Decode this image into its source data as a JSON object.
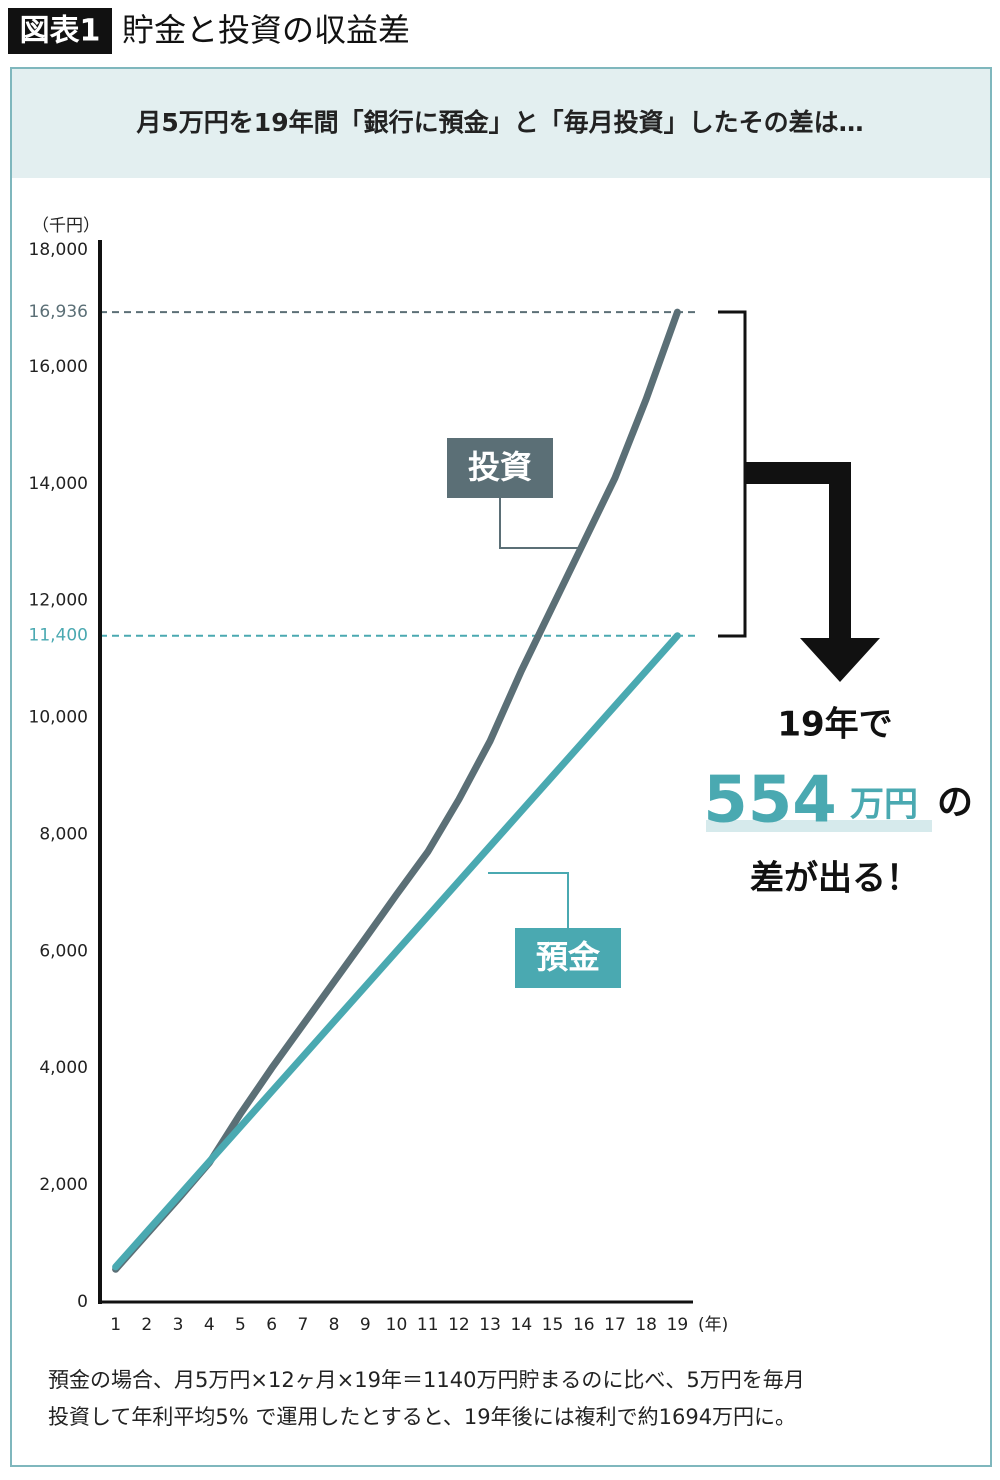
{
  "header": {
    "badge": "図表1",
    "title": "貯金と投資の収益差"
  },
  "chart_data": {
    "type": "line",
    "subtitle": "月5万円を19年間「銀行に預金」と「毎月投資」したその差は…",
    "y_unit": "（千円）",
    "x_unit": "(年)",
    "x": [
      1,
      2,
      3,
      4,
      5,
      6,
      7,
      8,
      9,
      10,
      11,
      12,
      13,
      14,
      15,
      16,
      17,
      18,
      19
    ],
    "series": [
      {
        "name": "投資",
        "color": "#5b6f76",
        "values": [
          560,
          1160,
          1760,
          2380,
          3220,
          4000,
          4740,
          5480,
          6220,
          6970,
          7700,
          8600,
          9600,
          10800,
          11900,
          13000,
          14100,
          15450,
          16936
        ]
      },
      {
        "name": "預金",
        "color": "#4aa9b1",
        "values": [
          600,
          1200,
          1800,
          2400,
          3000,
          3600,
          4200,
          4800,
          5400,
          6000,
          6600,
          7200,
          7800,
          8400,
          9000,
          9600,
          10200,
          10800,
          11400
        ]
      }
    ],
    "xlim": [
      0.5,
      19.5
    ],
    "ylim": [
      0,
      18000
    ],
    "xticks": [
      1,
      2,
      3,
      4,
      5,
      6,
      7,
      8,
      9,
      10,
      11,
      12,
      13,
      14,
      15,
      16,
      17,
      18,
      19
    ],
    "yticks": [
      0,
      {
        "value": 2000,
        "label": "2,000"
      },
      {
        "value": 4000,
        "label": "4,000"
      },
      {
        "value": 6000,
        "label": "6,000"
      },
      {
        "value": 8000,
        "label": "8,000"
      },
      {
        "value": 10000,
        "label": "10,000"
      },
      {
        "value": 12000,
        "label": "12,000"
      },
      {
        "value": 14000,
        "label": "14,000"
      },
      {
        "value": 16000,
        "label": "16,000"
      },
      {
        "value": 18000,
        "label": "18,000"
      }
    ],
    "reference_lines": [
      {
        "value": 16936,
        "label": "16,936",
        "color": "#5b6f76"
      },
      {
        "value": 11400,
        "label": "11,400",
        "color": "#4aa9b1"
      }
    ],
    "callout": {
      "line1": "19年で",
      "amount": "554",
      "unit": "万円",
      "particle": "の",
      "line3": "差が出る！"
    }
  },
  "footnote": [
    "預金の場合、月5万円×12ヶ月×19年＝1140万円貯まるのに比べ、5万円を毎月",
    "投資して年利平均5% で運用したとすると、19年後には複利で約1694万円に。"
  ]
}
